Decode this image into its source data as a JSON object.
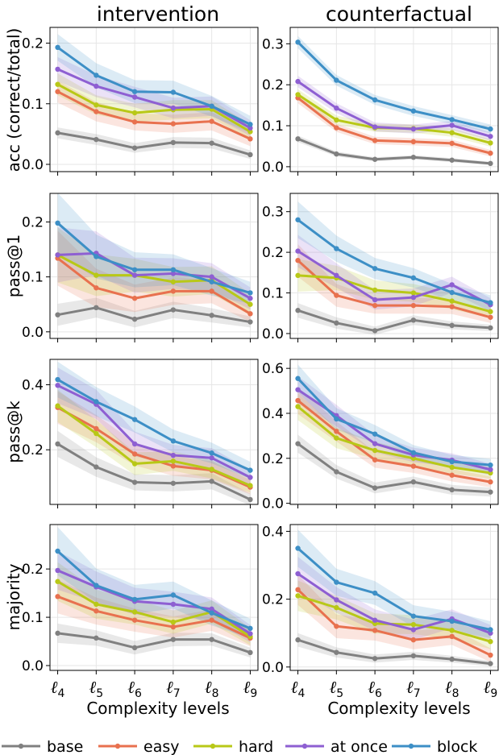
{
  "titles": [
    "intervention",
    "counterfactual"
  ],
  "row_labels": [
    "acc (correct/total)",
    "pass@1",
    "pass@k",
    "majority"
  ],
  "x_label": "Complexity levels",
  "x_tick_labels": [
    "ℓ",
    "4",
    "ℓ",
    "5",
    "ℓ",
    "6",
    "ℓ",
    "7",
    "ℓ",
    "8",
    "ℓ",
    "9"
  ],
  "legend": [
    "base",
    "easy",
    "hard",
    "at once",
    "block"
  ],
  "colors": {
    "base": "#808080",
    "easy": "#e8714f",
    "hard": "#b8c817",
    "at once": "#8e5fd2",
    "block": "#3d8fc6"
  },
  "chart_data": [
    {
      "type": "line",
      "title": "intervention",
      "ylabel": "acc (correct/total)",
      "x": [
        4,
        5,
        6,
        7,
        8,
        9
      ],
      "ylim": [
        -0.012,
        0.226
      ],
      "yticks": [
        0.0,
        0.1,
        0.2
      ],
      "grid": true,
      "series": [
        {
          "name": "base",
          "values": [
            0.052,
            0.041,
            0.027,
            0.036,
            0.035,
            0.016
          ],
          "band": [
            0.009,
            0.009,
            0.008,
            0.009,
            0.009,
            0.007
          ]
        },
        {
          "name": "easy",
          "values": [
            0.12,
            0.087,
            0.07,
            0.067,
            0.071,
            0.042
          ],
          "band": [
            0.018,
            0.016,
            0.014,
            0.015,
            0.015,
            0.012
          ]
        },
        {
          "name": "hard",
          "values": [
            0.132,
            0.098,
            0.085,
            0.09,
            0.091,
            0.054
          ],
          "band": [
            0.018,
            0.016,
            0.015,
            0.016,
            0.015,
            0.012
          ]
        },
        {
          "name": "at once",
          "values": [
            0.157,
            0.129,
            0.111,
            0.093,
            0.096,
            0.06
          ],
          "band": [
            0.02,
            0.018,
            0.017,
            0.017,
            0.016,
            0.013
          ]
        },
        {
          "name": "block",
          "values": [
            0.193,
            0.147,
            0.12,
            0.119,
            0.096,
            0.066
          ],
          "band": [
            0.022,
            0.02,
            0.019,
            0.019,
            0.017,
            0.014
          ]
        }
      ]
    },
    {
      "type": "line",
      "title": "counterfactual",
      "ylabel": "",
      "x": [
        4,
        5,
        6,
        7,
        8,
        9
      ],
      "ylim": [
        -0.012,
        0.34
      ],
      "yticks": [
        0.0,
        0.1,
        0.2,
        0.3
      ],
      "grid": true,
      "series": [
        {
          "name": "base",
          "values": [
            0.068,
            0.031,
            0.018,
            0.023,
            0.016,
            0.008
          ],
          "band": [
            0.008,
            0.006,
            0.005,
            0.005,
            0.005,
            0.004
          ]
        },
        {
          "name": "easy",
          "values": [
            0.168,
            0.095,
            0.064,
            0.061,
            0.057,
            0.033
          ],
          "band": [
            0.013,
            0.01,
            0.009,
            0.009,
            0.009,
            0.008
          ]
        },
        {
          "name": "hard",
          "values": [
            0.176,
            0.114,
            0.095,
            0.093,
            0.083,
            0.058
          ],
          "band": [
            0.013,
            0.011,
            0.01,
            0.01,
            0.01,
            0.009
          ]
        },
        {
          "name": "at once",
          "values": [
            0.208,
            0.143,
            0.097,
            0.092,
            0.101,
            0.074
          ],
          "band": [
            0.014,
            0.012,
            0.011,
            0.011,
            0.011,
            0.01
          ]
        },
        {
          "name": "block",
          "values": [
            0.304,
            0.211,
            0.163,
            0.136,
            0.115,
            0.092
          ],
          "band": [
            0.015,
            0.013,
            0.012,
            0.012,
            0.011,
            0.011
          ]
        }
      ]
    },
    {
      "type": "line",
      "title": "",
      "ylabel": "pass@1",
      "x": [
        4,
        5,
        6,
        7,
        8,
        9
      ],
      "ylim": [
        -0.012,
        0.252
      ],
      "yticks": [
        0.0,
        0.1,
        0.2
      ],
      "grid": true,
      "series": [
        {
          "name": "base",
          "values": [
            0.031,
            0.044,
            0.023,
            0.04,
            0.03,
            0.018
          ],
          "band": [
            0.02,
            0.018,
            0.015,
            0.015,
            0.013,
            0.01
          ]
        },
        {
          "name": "easy",
          "values": [
            0.134,
            0.08,
            0.061,
            0.074,
            0.074,
            0.033
          ],
          "band": [
            0.05,
            0.035,
            0.025,
            0.025,
            0.022,
            0.015
          ]
        },
        {
          "name": "hard",
          "values": [
            0.14,
            0.103,
            0.103,
            0.091,
            0.094,
            0.05
          ],
          "band": [
            0.05,
            0.038,
            0.03,
            0.027,
            0.025,
            0.02
          ]
        },
        {
          "name": "at once",
          "values": [
            0.14,
            0.143,
            0.103,
            0.106,
            0.1,
            0.061
          ],
          "band": [
            0.05,
            0.04,
            0.032,
            0.028,
            0.025,
            0.02
          ]
        },
        {
          "name": "block",
          "values": [
            0.198,
            0.137,
            0.113,
            0.113,
            0.091,
            0.071
          ],
          "band": [
            0.055,
            0.04,
            0.032,
            0.028,
            0.025,
            0.02
          ]
        }
      ]
    },
    {
      "type": "line",
      "title": "",
      "ylabel": "",
      "x": [
        4,
        5,
        6,
        7,
        8,
        9
      ],
      "ylim": [
        -0.012,
        0.345
      ],
      "yticks": [
        0.0,
        0.1,
        0.2,
        0.3
      ],
      "grid": true,
      "series": [
        {
          "name": "base",
          "values": [
            0.057,
            0.026,
            0.007,
            0.033,
            0.02,
            0.014
          ],
          "band": [
            0.018,
            0.014,
            0.01,
            0.012,
            0.01,
            0.008
          ]
        },
        {
          "name": "easy",
          "values": [
            0.18,
            0.094,
            0.069,
            0.069,
            0.066,
            0.04
          ],
          "band": [
            0.04,
            0.028,
            0.02,
            0.02,
            0.018,
            0.014
          ]
        },
        {
          "name": "hard",
          "values": [
            0.143,
            0.137,
            0.107,
            0.1,
            0.08,
            0.054
          ],
          "band": [
            0.04,
            0.03,
            0.024,
            0.022,
            0.02,
            0.016
          ]
        },
        {
          "name": "at once",
          "values": [
            0.203,
            0.143,
            0.083,
            0.089,
            0.12,
            0.071
          ],
          "band": [
            0.04,
            0.03,
            0.024,
            0.022,
            0.02,
            0.016
          ]
        },
        {
          "name": "block",
          "values": [
            0.28,
            0.209,
            0.16,
            0.137,
            0.101,
            0.076
          ],
          "band": [
            0.045,
            0.032,
            0.026,
            0.024,
            0.021,
            0.018
          ]
        }
      ]
    },
    {
      "type": "line",
      "title": "",
      "ylabel": "pass@k",
      "x": [
        4,
        5,
        6,
        7,
        8,
        9
      ],
      "ylim": [
        0.032,
        0.478
      ],
      "yticks": [
        0.2,
        0.4
      ],
      "grid": true,
      "series": [
        {
          "name": "base",
          "values": [
            0.218,
            0.147,
            0.1,
            0.097,
            0.103,
            0.047
          ],
          "band": [
            0.04,
            0.03,
            0.025,
            0.025,
            0.025,
            0.018
          ]
        },
        {
          "name": "easy",
          "values": [
            0.33,
            0.265,
            0.187,
            0.15,
            0.137,
            0.085
          ],
          "band": [
            0.05,
            0.042,
            0.035,
            0.03,
            0.028,
            0.022
          ]
        },
        {
          "name": "hard",
          "values": [
            0.335,
            0.25,
            0.157,
            0.165,
            0.14,
            0.09
          ],
          "band": [
            0.05,
            0.042,
            0.035,
            0.03,
            0.028,
            0.022
          ]
        },
        {
          "name": "at once",
          "values": [
            0.398,
            0.34,
            0.218,
            0.183,
            0.175,
            0.115
          ],
          "band": [
            0.055,
            0.045,
            0.038,
            0.032,
            0.03,
            0.024
          ]
        },
        {
          "name": "block",
          "values": [
            0.416,
            0.348,
            0.293,
            0.227,
            0.19,
            0.137
          ],
          "band": [
            0.055,
            0.045,
            0.04,
            0.035,
            0.032,
            0.026
          ]
        }
      ]
    },
    {
      "type": "line",
      "title": "",
      "ylabel": "",
      "x": [
        4,
        5,
        6,
        7,
        8,
        9
      ],
      "ylim": [
        -0.005,
        0.64
      ],
      "yticks": [
        0.0,
        0.2,
        0.4,
        0.6
      ],
      "grid": true,
      "series": [
        {
          "name": "base",
          "values": [
            0.265,
            0.14,
            0.068,
            0.095,
            0.06,
            0.05
          ],
          "band": [
            0.04,
            0.03,
            0.024,
            0.024,
            0.022,
            0.02
          ]
        },
        {
          "name": "easy",
          "values": [
            0.457,
            0.32,
            0.193,
            0.165,
            0.125,
            0.095
          ],
          "band": [
            0.06,
            0.045,
            0.035,
            0.03,
            0.028,
            0.024
          ]
        },
        {
          "name": "hard",
          "values": [
            0.43,
            0.29,
            0.235,
            0.2,
            0.16,
            0.135
          ],
          "band": [
            0.06,
            0.045,
            0.038,
            0.032,
            0.028,
            0.026
          ]
        },
        {
          "name": "at once",
          "values": [
            0.505,
            0.39,
            0.265,
            0.215,
            0.192,
            0.15
          ],
          "band": [
            0.06,
            0.048,
            0.038,
            0.032,
            0.03,
            0.026
          ]
        },
        {
          "name": "block",
          "values": [
            0.555,
            0.375,
            0.308,
            0.225,
            0.185,
            0.17
          ],
          "band": [
            0.062,
            0.048,
            0.04,
            0.034,
            0.03,
            0.028
          ]
        }
      ]
    },
    {
      "type": "line",
      "title": "",
      "ylabel": "majority",
      "x": [
        4,
        5,
        6,
        7,
        8,
        9
      ],
      "ylim": [
        -0.01,
        0.292
      ],
      "yticks": [
        0.0,
        0.1,
        0.2
      ],
      "grid": true,
      "series": [
        {
          "name": "base",
          "values": [
            0.067,
            0.057,
            0.037,
            0.054,
            0.054,
            0.027
          ],
          "band": [
            0.02,
            0.016,
            0.014,
            0.014,
            0.013,
            0.01
          ]
        },
        {
          "name": "easy",
          "values": [
            0.143,
            0.113,
            0.094,
            0.08,
            0.094,
            0.057
          ],
          "band": [
            0.035,
            0.028,
            0.024,
            0.022,
            0.022,
            0.017
          ]
        },
        {
          "name": "hard",
          "values": [
            0.174,
            0.127,
            0.111,
            0.09,
            0.111,
            0.06
          ],
          "band": [
            0.04,
            0.03,
            0.026,
            0.024,
            0.024,
            0.018
          ]
        },
        {
          "name": "at once",
          "values": [
            0.197,
            0.163,
            0.133,
            0.127,
            0.117,
            0.066
          ],
          "band": [
            0.04,
            0.032,
            0.028,
            0.026,
            0.024,
            0.018
          ]
        },
        {
          "name": "block",
          "values": [
            0.237,
            0.166,
            0.137,
            0.146,
            0.109,
            0.077
          ],
          "band": [
            0.05,
            0.035,
            0.03,
            0.028,
            0.026,
            0.02
          ]
        }
      ]
    },
    {
      "type": "line",
      "title": "",
      "ylabel": "",
      "x": [
        4,
        5,
        6,
        7,
        8,
        9
      ],
      "ylim": [
        -0.01,
        0.42
      ],
      "yticks": [
        0.0,
        0.2,
        0.4
      ],
      "grid": true,
      "series": [
        {
          "name": "base",
          "values": [
            0.08,
            0.043,
            0.025,
            0.033,
            0.023,
            0.01
          ],
          "band": [
            0.02,
            0.015,
            0.012,
            0.012,
            0.01,
            0.008
          ]
        },
        {
          "name": "easy",
          "values": [
            0.228,
            0.12,
            0.108,
            0.08,
            0.09,
            0.035
          ],
          "band": [
            0.045,
            0.035,
            0.03,
            0.028,
            0.025,
            0.02
          ]
        },
        {
          "name": "hard",
          "values": [
            0.21,
            0.175,
            0.128,
            0.125,
            0.108,
            0.075
          ],
          "band": [
            0.045,
            0.035,
            0.03,
            0.028,
            0.026,
            0.022
          ]
        },
        {
          "name": "at once",
          "values": [
            0.275,
            0.198,
            0.138,
            0.11,
            0.142,
            0.1
          ],
          "band": [
            0.05,
            0.038,
            0.032,
            0.03,
            0.028,
            0.024
          ]
        },
        {
          "name": "block",
          "values": [
            0.35,
            0.25,
            0.218,
            0.15,
            0.135,
            0.11
          ],
          "band": [
            0.055,
            0.04,
            0.035,
            0.032,
            0.028,
            0.025
          ]
        }
      ]
    }
  ]
}
